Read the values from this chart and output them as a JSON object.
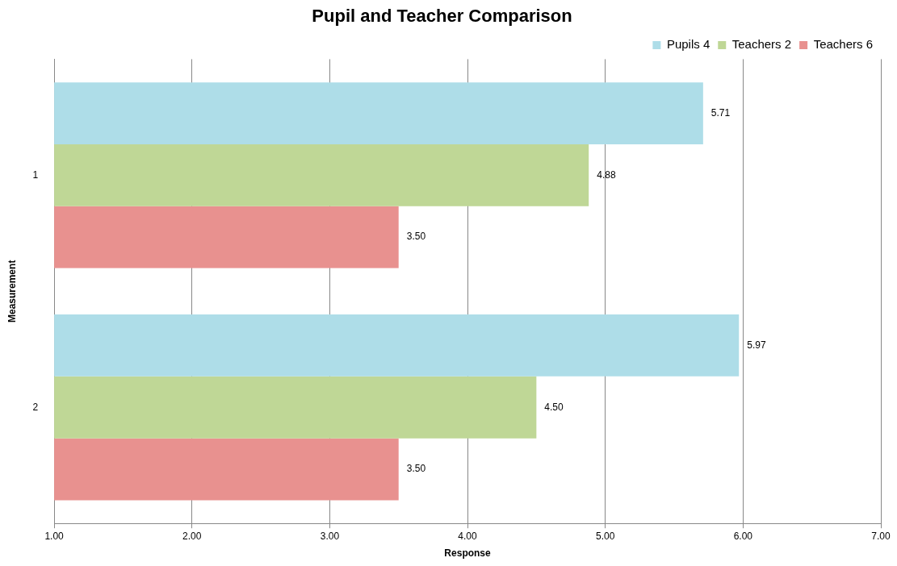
{
  "chart_data": {
    "type": "bar",
    "orientation": "horizontal",
    "title": "Pupil and Teacher Comparison",
    "xlabel": "Response",
    "ylabel": "Measurement",
    "categories": [
      "1",
      "2"
    ],
    "series": [
      {
        "name": "Pupils 4",
        "color": "#aedde8",
        "values": [
          5.71,
          5.97
        ],
        "value_labels": [
          "5.71",
          "5.97"
        ]
      },
      {
        "name": "Teachers 2",
        "color": "#bfd796",
        "values": [
          4.88,
          4.5
        ],
        "value_labels": [
          "4.88",
          "4.50"
        ]
      },
      {
        "name": "Teachers 6",
        "color": "#e8918f",
        "values": [
          3.5,
          3.5
        ],
        "value_labels": [
          "3.50",
          "3.50"
        ]
      }
    ],
    "xlim": [
      1,
      7
    ],
    "xticks": [
      {
        "value": 1,
        "label": "1.00"
      },
      {
        "value": 2,
        "label": "2.00"
      },
      {
        "value": 3,
        "label": "3.00"
      },
      {
        "value": 4,
        "label": "4.00"
      },
      {
        "value": 5,
        "label": "5.00"
      },
      {
        "value": 6,
        "label": "6.00"
      },
      {
        "value": 7,
        "label": "7.00"
      }
    ],
    "grid": "x",
    "legend": "top right"
  }
}
